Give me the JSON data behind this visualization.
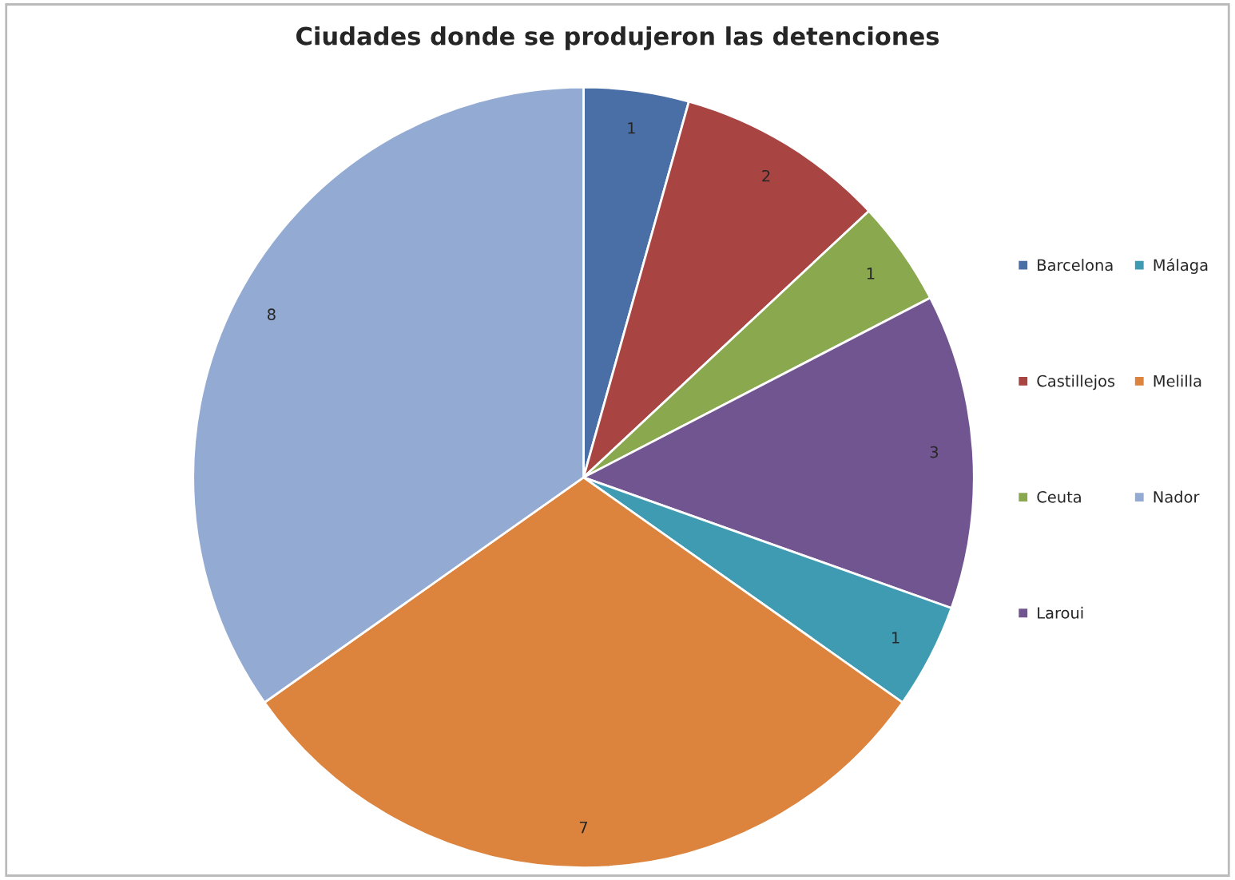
{
  "chart_data": {
    "type": "pie",
    "title": "Ciudades donde se produjeron las detenciones",
    "categories": [
      "Barcelona",
      "Castillejos",
      "Ceuta",
      "Laroui",
      "Málaga",
      "Melilla",
      "Nador"
    ],
    "values": [
      1,
      2,
      1,
      3,
      1,
      7,
      8
    ],
    "colors": [
      "#4a6fa6",
      "#a84442",
      "#8aa84e",
      "#715590",
      "#3f9bb1",
      "#dc843d",
      "#93aad2"
    ],
    "data_labels": true,
    "legend": "right"
  }
}
